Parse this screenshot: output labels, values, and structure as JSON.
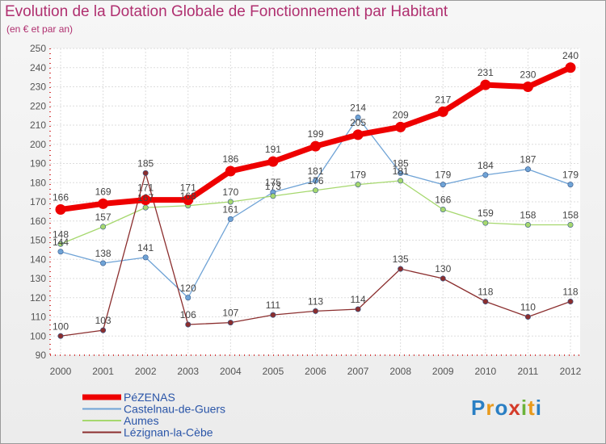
{
  "title": "Evolution de la Dotation Globale de Fonctionnement par Habitant",
  "subtitle": "(en € et par an)",
  "logo": [
    "P",
    "r",
    "o",
    "x",
    "i",
    "t",
    "i"
  ],
  "chart_data": {
    "type": "line",
    "categories": [
      "2000",
      "2001",
      "2002",
      "2003",
      "2004",
      "2005",
      "2006",
      "2007",
      "2008",
      "2009",
      "2010",
      "2011",
      "2012"
    ],
    "ylim": [
      90,
      250
    ],
    "yticks": [
      90,
      100,
      110,
      120,
      130,
      140,
      150,
      160,
      170,
      180,
      190,
      200,
      210,
      220,
      230,
      240,
      250
    ],
    "grid": true,
    "legend_position": "bottom-left",
    "series": [
      {
        "name": "PéZENAS",
        "color": "#ee0000",
        "values": [
          166,
          169,
          171,
          171,
          186,
          191,
          199,
          205,
          209,
          217,
          231,
          230,
          240
        ]
      },
      {
        "name": "Castelnau-de-Guers",
        "color": "#6fa3d6",
        "values": [
          144,
          138,
          141,
          120,
          161,
          175,
          181,
          214,
          185,
          179,
          184,
          187,
          179
        ]
      },
      {
        "name": "Aumes",
        "color": "#a6d86e",
        "values": [
          148,
          157,
          167,
          168,
          170,
          173,
          176,
          179,
          181,
          166,
          159,
          158,
          158
        ]
      },
      {
        "name": "Lézignan-la-Cèbe",
        "color": "#8b2e2e",
        "values": [
          100,
          103,
          185,
          106,
          107,
          111,
          113,
          114,
          135,
          130,
          118,
          110,
          118
        ]
      }
    ]
  }
}
